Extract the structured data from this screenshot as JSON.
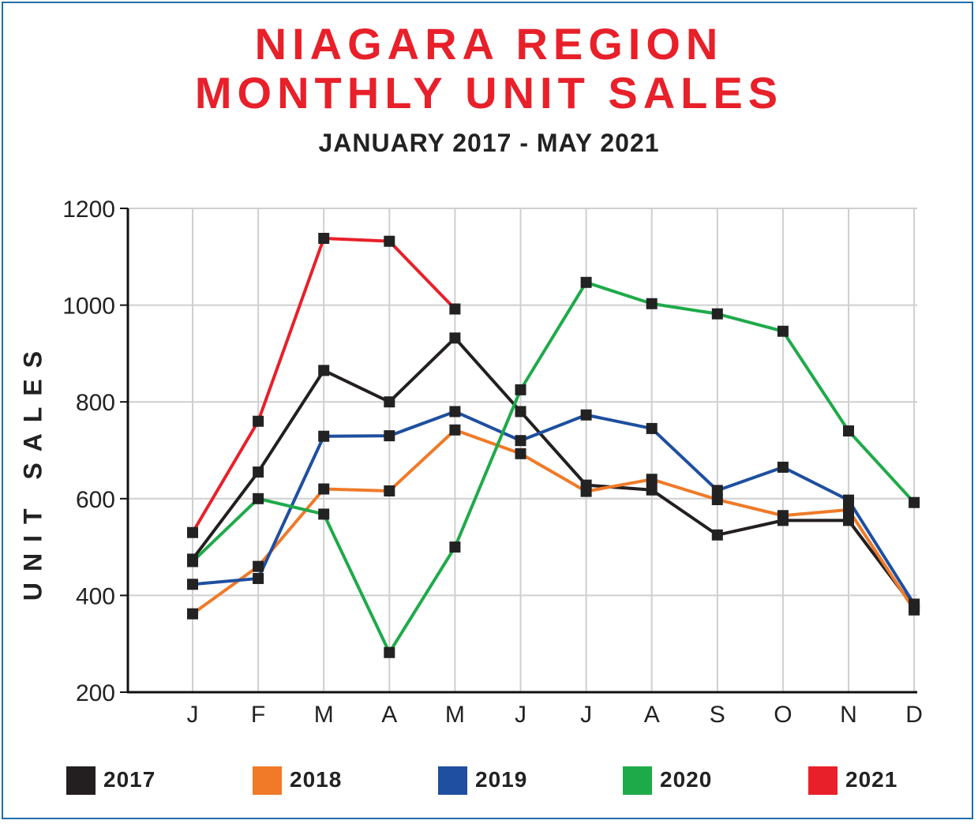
{
  "title_line1": "NIAGARA REGION",
  "title_line2": "MONTHLY UNIT SALES",
  "subtitle": "JANUARY 2017 - MAY 2021",
  "chart_data": {
    "type": "line",
    "title": "NIAGARA REGION MONTHLY UNIT SALES",
    "subtitle": "JANUARY 2017 - MAY 2021",
    "ylabel": "UNIT SALES",
    "xlabel": "",
    "categories": [
      "J",
      "F",
      "M",
      "A",
      "M",
      "J",
      "J",
      "A",
      "S",
      "O",
      "N",
      "D"
    ],
    "ylim": [
      200,
      1200
    ],
    "yticks": [
      200,
      400,
      600,
      800,
      1000,
      1200
    ],
    "grid": true,
    "legend_position": "bottom",
    "series": [
      {
        "name": "2017",
        "color": "#231f20",
        "values": [
          475,
          655,
          865,
          800,
          932,
          780,
          628,
          618,
          525,
          555,
          555,
          375
        ]
      },
      {
        "name": "2018",
        "color": "#f07a28",
        "values": [
          362,
          460,
          620,
          616,
          742,
          693,
          615,
          640,
          598,
          565,
          577,
          370
        ]
      },
      {
        "name": "2019",
        "color": "#1e4fa0",
        "values": [
          423,
          435,
          729,
          730,
          780,
          720,
          773,
          745,
          617,
          665,
          597,
          382
        ]
      },
      {
        "name": "2020",
        "color": "#1faa4a",
        "values": [
          470,
          600,
          568,
          282,
          500,
          825,
          1047,
          1003,
          982,
          946,
          740,
          592
        ]
      },
      {
        "name": "2021",
        "color": "#e8202a",
        "values": [
          530,
          760,
          1138,
          1132,
          992,
          null,
          null,
          null,
          null,
          null,
          null,
          null
        ]
      }
    ]
  },
  "legend": [
    {
      "label": "2017",
      "color": "#231f20"
    },
    {
      "label": "2018",
      "color": "#f07a28"
    },
    {
      "label": "2019",
      "color": "#1e4fa0"
    },
    {
      "label": "2020",
      "color": "#1faa4a"
    },
    {
      "label": "2021",
      "color": "#e8202a"
    }
  ]
}
